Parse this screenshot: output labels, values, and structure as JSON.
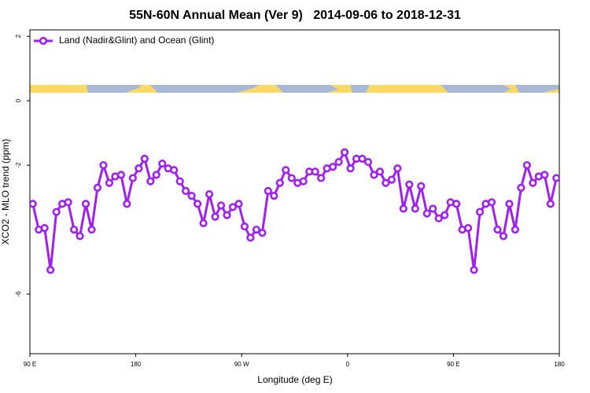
{
  "chart_data": {
    "type": "line",
    "title": "55N-60N Annual Mean (Ver 9)   2014-09-06 to 2018-12-31",
    "x_label": "Longitude (deg E)",
    "y_label": "XCO2 - MLO trend (ppm)",
    "xlim": [
      90,
      540
    ],
    "ylim": [
      -7.85,
      2.2
    ],
    "xticks": [
      {
        "value": 90,
        "label": "90 E"
      },
      180,
      {
        "value": 270,
        "label": "90 W"
      },
      {
        "value": 360,
        "label": "0"
      },
      {
        "value": 450,
        "label": "90 E"
      },
      {
        "value": 540,
        "label": "180"
      }
    ],
    "yticks": [
      2,
      0,
      -2,
      -6
    ],
    "legend": "top-left",
    "x": [
      92.5,
      97.5,
      102.5,
      107.5,
      112.5,
      117.5,
      122.5,
      127.5,
      132.5,
      137.5,
      142.5,
      147.5,
      152.5,
      157.5,
      162.5,
      167.5,
      172.5,
      177.5,
      182.5,
      187.5,
      192.5,
      197.5,
      202.5,
      207.5,
      212.5,
      217.5,
      222.5,
      227.5,
      232.5,
      237.5,
      242.5,
      247.5,
      252.5,
      257.5,
      262.5,
      267.5,
      272.5,
      277.5,
      282.5,
      287.5,
      292.5,
      297.5,
      302.5,
      307.5,
      312.5,
      317.5,
      322.5,
      327.5,
      332.5,
      337.5,
      342.5,
      347.5,
      352.5,
      357.5,
      362.5,
      367.5,
      372.5,
      377.5,
      382.5,
      387.5,
      392.5,
      397.5,
      402.5,
      407.5,
      412.5,
      417.5,
      422.5,
      427.5,
      432.5,
      437.5,
      442.5,
      447.5,
      452.5,
      457.5,
      462.5,
      467.5,
      472.5,
      477.5,
      482.5,
      487.5,
      492.5,
      497.5,
      502.5,
      507.5,
      512.5,
      517.5,
      522.5,
      527.5,
      532.5,
      537.5
    ],
    "series": [
      {
        "name": "Land (Nadir&Glint) and Ocean (Glint)",
        "color": "#a020f0",
        "values": [
          -3.2,
          -4.0,
          -3.95,
          -5.25,
          -3.45,
          -3.2,
          -3.15,
          -4.0,
          -4.2,
          -3.2,
          -4.0,
          -2.7,
          -2.0,
          -2.55,
          -2.35,
          -2.3,
          -3.2,
          -2.4,
          -2.1,
          -1.8,
          -2.5,
          -2.3,
          -1.95,
          -2.1,
          -2.15,
          -2.5,
          -2.8,
          -2.95,
          -3.2,
          -3.8,
          -2.9,
          -3.6,
          -3.25,
          -3.55,
          -3.3,
          -3.2,
          -3.9,
          -4.25,
          -4.0,
          -4.1,
          -2.8,
          -2.95,
          -2.55,
          -2.15,
          -2.4,
          -2.55,
          -2.5,
          -2.2,
          -2.2,
          -2.4,
          -2.1,
          -2.05,
          -1.9,
          -1.6,
          -2.1,
          -1.8,
          -1.8,
          -1.9,
          -2.3,
          -2.2,
          -2.55,
          -2.45,
          -2.1,
          -3.35,
          -2.6,
          -3.35,
          -2.65,
          -3.5,
          -3.35,
          -3.65,
          -3.55,
          -3.15,
          -3.2,
          -4.0,
          -3.95,
          -5.25,
          -3.45,
          -3.2,
          -3.15,
          -4.0,
          -4.2,
          -3.2,
          -4.0,
          -2.7,
          -2.0,
          -2.55,
          -2.35,
          -2.3,
          -3.2,
          -2.4
        ]
      }
    ]
  }
}
